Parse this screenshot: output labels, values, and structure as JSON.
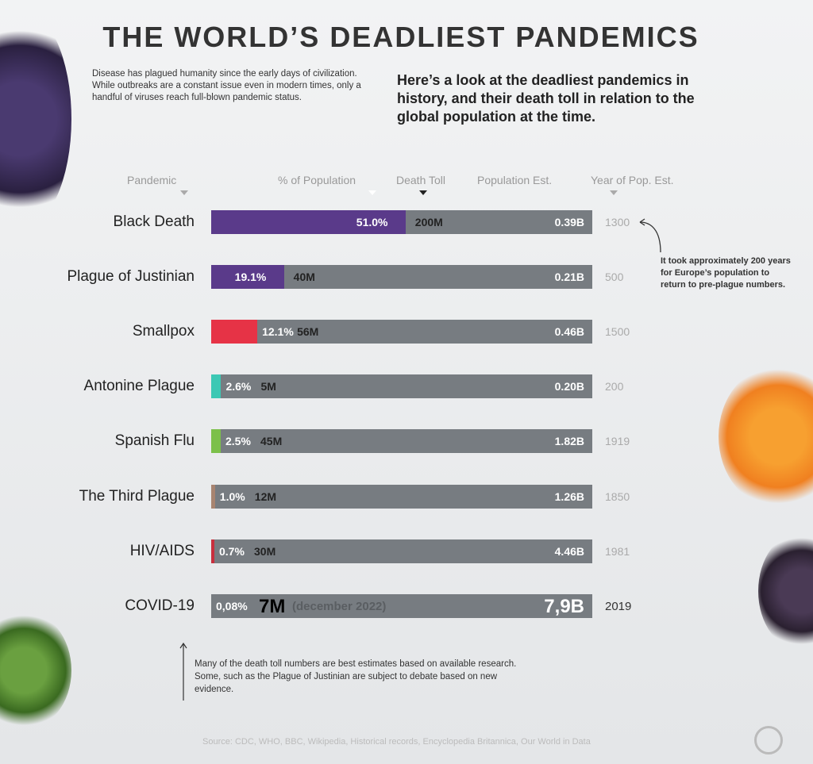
{
  "title": "THE WORLD’S DEADLIEST PANDEMICS",
  "intro": "Disease has plagued humanity since the early days of civilization. While outbreaks are a constant issue even in modern times, only a handful of viruses reach full-blown pandemic status.",
  "lead": "Here’s a look at the deadliest pandemics in history, and their death toll in relation to the global population at the time.",
  "annotation": "It took approximately 200 years for Europe’s population to return to pre-plague numbers.",
  "footnote": "Many of the death toll numbers are best estimates based on available research. Some, such as the Plague of Justinian are subject to debate based on new evidence.",
  "source": "Source: CDC, WHO, BBC, Wikipedia, Historical records, Encyclopedia Britannica, Our World in Data",
  "chart_data": {
    "type": "bar",
    "orientation": "horizontal",
    "columns": [
      "Pandemic",
      "% of Population",
      "Death Toll",
      "Population Est.",
      "Year of Pop. Est."
    ],
    "xlim": [
      0,
      100
    ],
    "rows": [
      {
        "name": "Black Death",
        "pct": 51.0,
        "pct_label": "51.0%",
        "toll": "200M",
        "pop": "0.39B",
        "year": "1300",
        "color": "#5a3a8a"
      },
      {
        "name": "Plague of Justinian",
        "pct": 19.1,
        "pct_label": "19.1%",
        "toll": "40M",
        "pop": "0.21B",
        "year": "500",
        "color": "#5a3a8a"
      },
      {
        "name": "Smallpox",
        "pct": 12.1,
        "pct_label": "12.1%",
        "toll": "56M",
        "pop": "0.46B",
        "year": "1500",
        "color": "#e63346"
      },
      {
        "name": "Antonine Plague",
        "pct": 2.6,
        "pct_label": "2.6%",
        "toll": "5M",
        "pop": "0.20B",
        "year": "200",
        "color": "#3cc8b4"
      },
      {
        "name": "Spanish Flu",
        "pct": 2.5,
        "pct_label": "2.5%",
        "toll": "45M",
        "pop": "1.82B",
        "year": "1919",
        "color": "#7cc04a"
      },
      {
        "name": "The Third Plague",
        "pct": 1.0,
        "pct_label": "1.0%",
        "toll": "12M",
        "pop": "1.26B",
        "year": "1850",
        "color": "#a88470"
      },
      {
        "name": "HIV/AIDS",
        "pct": 0.7,
        "pct_label": "0.7%",
        "toll": "30M",
        "pop": "4.46B",
        "year": "1981",
        "color": "#c8303e"
      },
      {
        "name": "COVID-19",
        "pct": 0.08,
        "pct_label": "0,08%",
        "toll": "7M",
        "toll_note": "(december 2022)",
        "pop": "7,9B",
        "year": "2019",
        "color": "#777c81"
      }
    ]
  }
}
